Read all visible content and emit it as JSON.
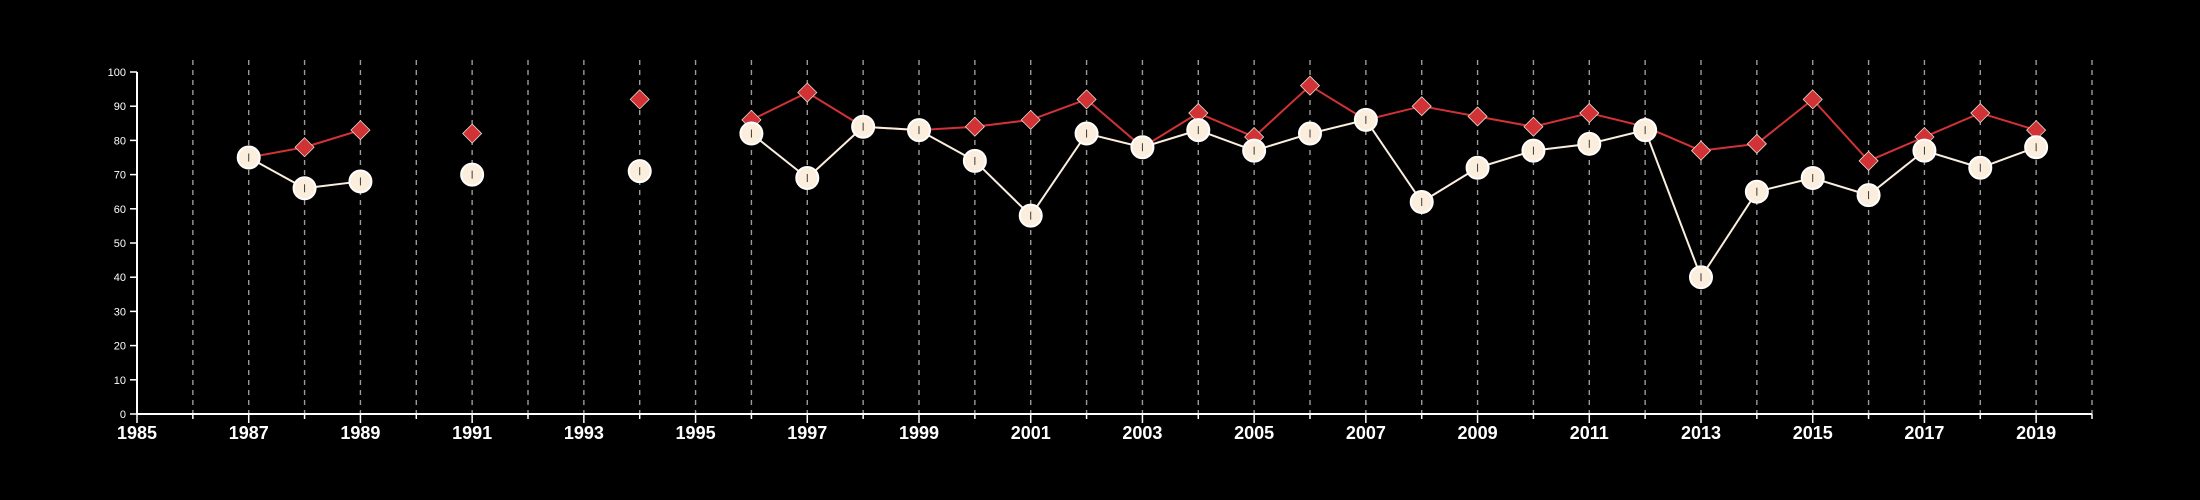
{
  "chart_data": {
    "type": "line",
    "title": "",
    "xlabel": "",
    "ylabel": "",
    "xlim": [
      1985,
      2020
    ],
    "ylim": [
      0,
      100
    ],
    "y_ticks": [
      0,
      10,
      20,
      30,
      40,
      50,
      60,
      70,
      80,
      90,
      100
    ],
    "x_tick_labels": [
      "1985",
      "1987",
      "1989",
      "1991",
      "1993",
      "1995",
      "1997",
      "1999",
      "2001",
      "2003",
      "2005",
      "2007",
      "2009",
      "2011",
      "2013",
      "2015",
      "2017",
      "2019"
    ],
    "grid": "vertical dashed lines at every year",
    "background_color": "#000000",
    "series": [
      {
        "marker": "diamond",
        "color": "#d03236",
        "points": [
          [
            1987,
            75
          ],
          [
            1988,
            78
          ],
          [
            1989,
            83
          ],
          [
            1991,
            82
          ],
          [
            1994,
            92
          ],
          [
            1996,
            86
          ],
          [
            1997,
            94
          ],
          [
            1998,
            84
          ],
          [
            1999,
            83
          ],
          [
            2000,
            84
          ],
          [
            2001,
            86
          ],
          [
            2002,
            92
          ],
          [
            2003,
            78
          ],
          [
            2004,
            88
          ],
          [
            2005,
            81
          ],
          [
            2006,
            96
          ],
          [
            2007,
            86
          ],
          [
            2008,
            90
          ],
          [
            2009,
            87
          ],
          [
            2010,
            84
          ],
          [
            2011,
            88
          ],
          [
            2012,
            84
          ],
          [
            2013,
            77
          ],
          [
            2014,
            79
          ],
          [
            2015,
            92
          ],
          [
            2016,
            74
          ],
          [
            2017,
            81
          ],
          [
            2018,
            88
          ],
          [
            2019,
            83
          ]
        ]
      },
      {
        "marker": "circle",
        "color": "#fbeedd",
        "points": [
          [
            1987,
            75
          ],
          [
            1988,
            66
          ],
          [
            1989,
            68
          ],
          [
            1991,
            70
          ],
          [
            1994,
            71
          ],
          [
            1996,
            82
          ],
          [
            1997,
            69
          ],
          [
            1998,
            84
          ],
          [
            1999,
            83
          ],
          [
            2000,
            74
          ],
          [
            2001,
            58
          ],
          [
            2002,
            82
          ],
          [
            2003,
            78
          ],
          [
            2004,
            83
          ],
          [
            2005,
            77
          ],
          [
            2006,
            82
          ],
          [
            2007,
            86
          ],
          [
            2008,
            62
          ],
          [
            2009,
            72
          ],
          [
            2010,
            77
          ],
          [
            2011,
            79
          ],
          [
            2012,
            83
          ],
          [
            2013,
            40
          ],
          [
            2014,
            65
          ],
          [
            2015,
            69
          ],
          [
            2016,
            64
          ],
          [
            2017,
            77
          ],
          [
            2018,
            72
          ],
          [
            2019,
            78
          ]
        ]
      }
    ]
  }
}
